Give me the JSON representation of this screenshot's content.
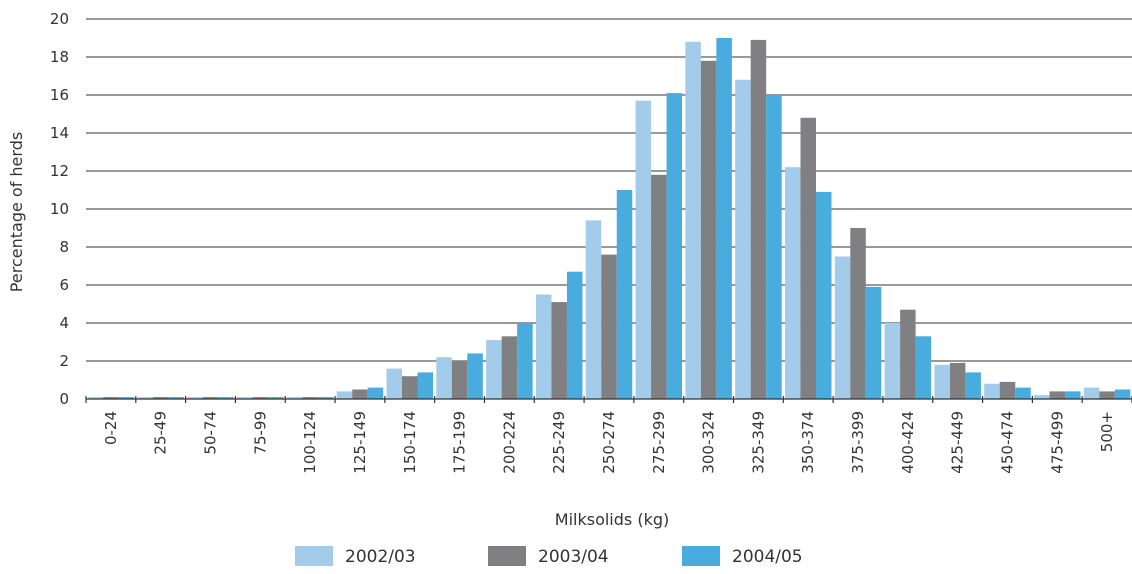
{
  "chart_data": {
    "type": "bar",
    "title": "",
    "xlabel": "Milksolids (kg)",
    "ylabel": "Percentage of herds",
    "ylim": [
      0,
      20
    ],
    "yticks": [
      0,
      2,
      4,
      6,
      8,
      10,
      12,
      14,
      16,
      18,
      20
    ],
    "grid": true,
    "legend_position": "bottom",
    "categories": [
      "0-24",
      "25-49",
      "50-74",
      "75-99",
      "100-124",
      "125-149",
      "150-174",
      "175-199",
      "200-224",
      "225-249",
      "250-274",
      "275-299",
      "300-324",
      "325-349",
      "350-374",
      "375-399",
      "400-424",
      "425-449",
      "450-474",
      "475-499",
      "500+"
    ],
    "series": [
      {
        "name": "2002/03",
        "color": "#a3cbea",
        "values": [
          0.1,
          0.1,
          0.1,
          0.1,
          0.1,
          0.4,
          1.6,
          2.2,
          3.1,
          5.5,
          9.4,
          15.7,
          18.8,
          16.8,
          12.2,
          7.5,
          4.0,
          1.8,
          0.8,
          0.2,
          0.6
        ]
      },
      {
        "name": "2003/04",
        "color": "#808083",
        "values": [
          0.1,
          0.1,
          0.1,
          0.1,
          0.1,
          0.5,
          1.2,
          2.0,
          3.3,
          5.1,
          7.6,
          11.8,
          17.8,
          18.9,
          14.8,
          9.0,
          4.7,
          1.9,
          0.9,
          0.4,
          0.4
        ]
      },
      {
        "name": "2004/05",
        "color": "#49acdf",
        "values": [
          0.1,
          0.1,
          0.1,
          0.1,
          0.1,
          0.6,
          1.4,
          2.4,
          4.0,
          6.7,
          11.0,
          16.1,
          19.0,
          16.0,
          10.9,
          5.9,
          3.3,
          1.4,
          0.6,
          0.4,
          0.5
        ]
      }
    ]
  }
}
